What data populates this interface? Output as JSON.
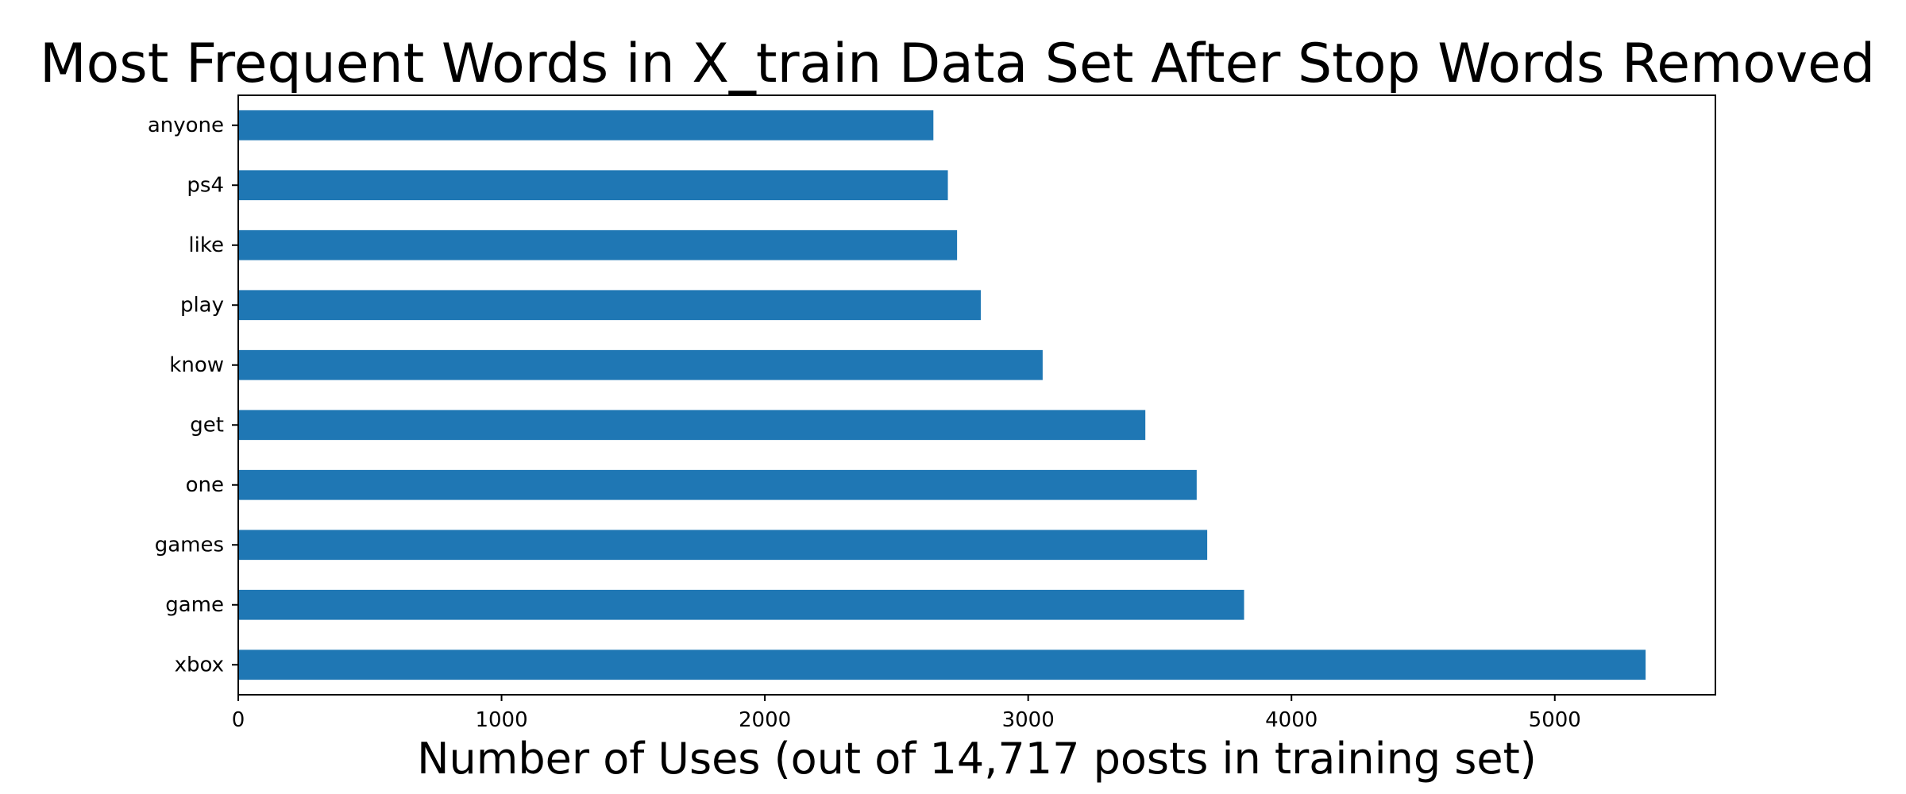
{
  "chart_data": {
    "type": "bar",
    "orientation": "horizontal",
    "title": "Most Frequent Words in X_train Data Set After Stop Words Removed",
    "xlabel": "Number of Uses (out of 14,717 posts in training set)",
    "ylabel": "",
    "categories": [
      "anyone",
      "ps4",
      "like",
      "play",
      "know",
      "get",
      "one",
      "games",
      "game",
      "xbox"
    ],
    "values": [
      2640,
      2695,
      2730,
      2820,
      3055,
      3445,
      3640,
      3680,
      3820,
      5345
    ],
    "xlim": [
      0,
      5610
    ],
    "xticks": [
      0,
      1000,
      2000,
      3000,
      4000,
      5000
    ],
    "bar_color": "#1f77b4",
    "grid": false,
    "legend": "none"
  }
}
